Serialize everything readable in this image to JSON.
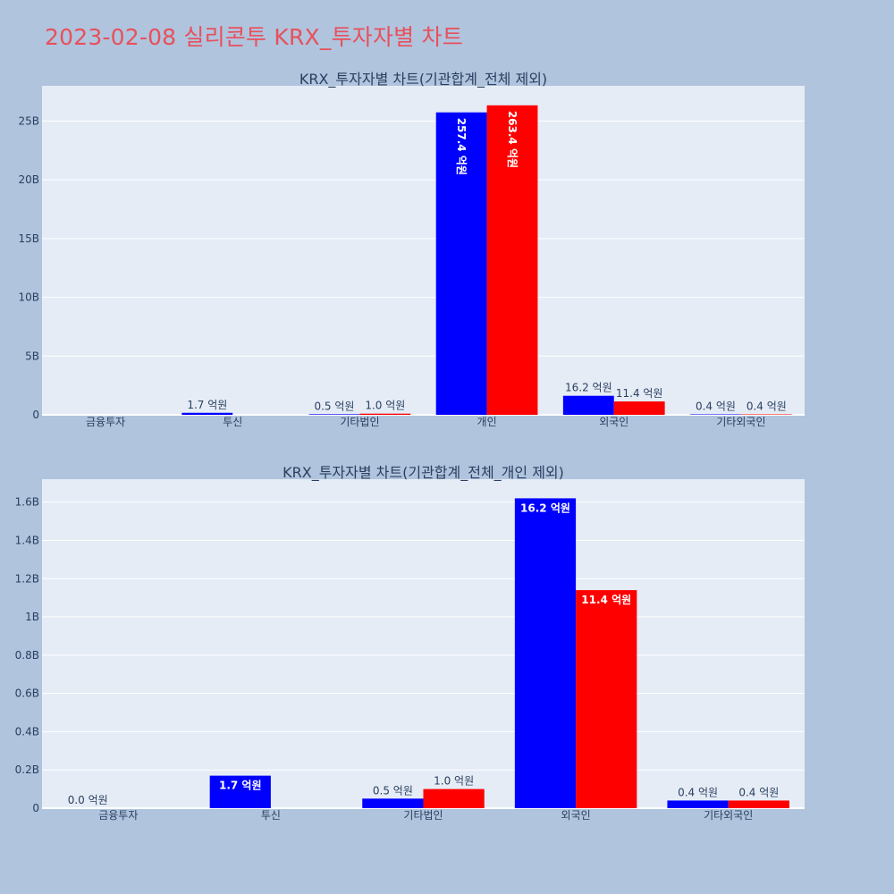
{
  "page": {
    "title": "2023-02-08 실리콘투 KRX_투자자별 차트"
  },
  "chart_data": [
    {
      "type": "bar",
      "title": "KRX_투자자별 차트(기관합계_전체 제외)",
      "categories": [
        "금융투자",
        "투신",
        "기타법인",
        "개인",
        "외국인",
        "기타외국인"
      ],
      "ylim": [
        0,
        28000000000
      ],
      "yticks": [
        0,
        5000000000,
        10000000000,
        15000000000,
        20000000000,
        25000000000
      ],
      "ytick_labels": [
        "0",
        "5B",
        "10B",
        "15B",
        "20B",
        "25B"
      ],
      "grid": true,
      "series": [
        {
          "color": "#0000ff",
          "values": [
            null,
            170000000,
            50000000,
            25740000000,
            1620000000,
            40000000
          ],
          "labels": [
            "",
            "1.7 억원",
            "0.5 억원",
            "257.4 억원",
            "16.2 억원",
            "0.4 억원"
          ]
        },
        {
          "color": "#ff0000",
          "values": [
            null,
            null,
            100000000,
            26340000000,
            1140000000,
            40000000
          ],
          "labels": [
            "",
            "",
            "1.0 억원",
            "263.4 억원",
            "11.4 억원",
            "0.4 억원"
          ]
        }
      ]
    },
    {
      "type": "bar",
      "title": "KRX_투자자별 차트(기관합계_전체_개인 제외)",
      "categories": [
        "금융투자",
        "투신",
        "기타법인",
        "외국인",
        "기타외국인"
      ],
      "ylim": [
        0,
        1720000000
      ],
      "yticks": [
        0,
        200000000,
        400000000,
        600000000,
        800000000,
        1000000000,
        1200000000,
        1400000000,
        1600000000
      ],
      "ytick_labels": [
        "0",
        "0.2B",
        "0.4B",
        "0.6B",
        "0.8B",
        "1B",
        "1.2B",
        "1.4B",
        "1.6B"
      ],
      "grid": true,
      "series": [
        {
          "color": "#0000ff",
          "values": [
            0,
            170000000,
            50000000,
            1620000000,
            40000000
          ],
          "labels": [
            "0.0 억원",
            "1.7 억원",
            "0.5 억원",
            "16.2 억원",
            "0.4 억원"
          ]
        },
        {
          "color": "#ff0000",
          "values": [
            null,
            null,
            100000000,
            1140000000,
            40000000
          ],
          "labels": [
            "",
            "",
            "1.0 억원",
            "11.4 억원",
            "0.4 억원"
          ]
        }
      ]
    }
  ],
  "colors": {
    "page_bg": "#b0c4de",
    "plot_bg": "#e5ecf6",
    "title": "#e8505b",
    "axis_text": "#2a3f5f"
  }
}
